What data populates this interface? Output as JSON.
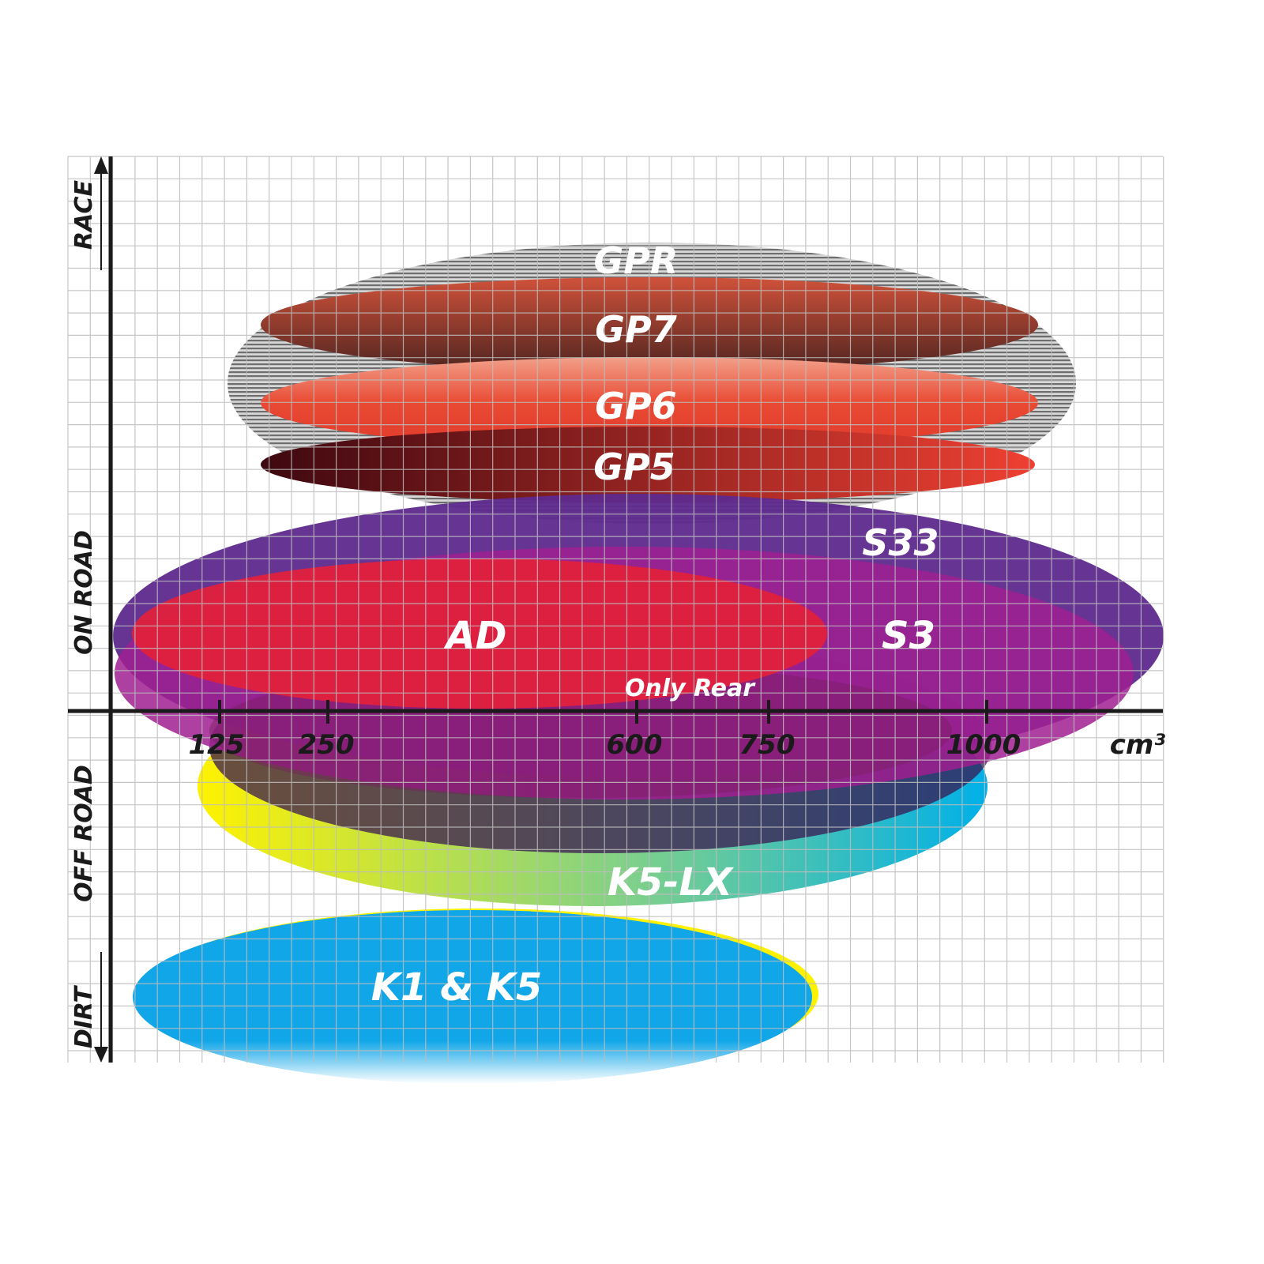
{
  "y_axis_labels": {
    "race": "RACE",
    "on_road": "ON ROAD",
    "off_road": "OFF ROAD",
    "dirt": "DIRT"
  },
  "x_axis": {
    "ticks": [
      "125",
      "250",
      "600",
      "750",
      "1000"
    ],
    "unit": "cm³"
  },
  "tires": {
    "gpr": "GPR",
    "gp7": "GP7",
    "gp6": "GP6",
    "gp5": "GP5",
    "s33": "S33",
    "s3": "S3",
    "ad": "AD",
    "only_rear": "Only Rear",
    "k5lx": "K5-LX",
    "k1k5": "K1 & K5"
  },
  "colors": {
    "s33": "#5e2a8e",
    "s3": "#a01f90",
    "ad": "#e2213c",
    "k1k5": "#12a9ea",
    "gpr": "#9a9a9a"
  }
}
